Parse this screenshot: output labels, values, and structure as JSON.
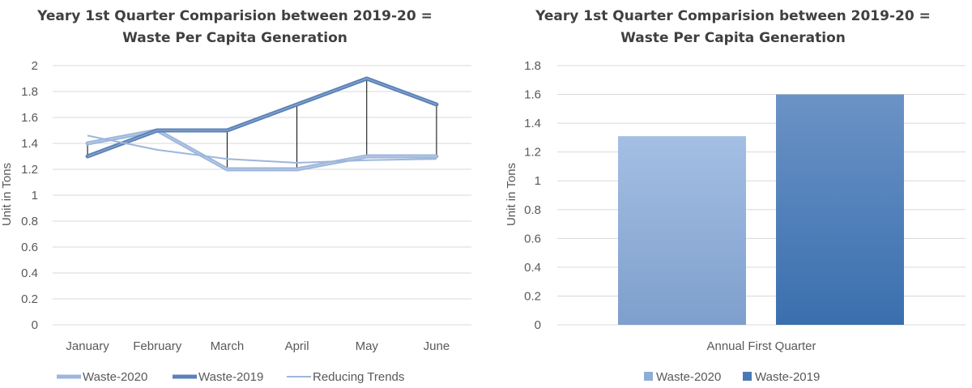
{
  "chart_data": [
    {
      "type": "line",
      "title_line1": "Yeary 1st Quarter Comparision between 2019-20 =",
      "title_line2": "Waste Per Capita Generation",
      "xlabel": "",
      "ylabel": "Unit in Tons",
      "categories": [
        "January",
        "February",
        "March",
        "April",
        "May",
        "June"
      ],
      "ylim": [
        0,
        2
      ],
      "yticks": [
        "0",
        "0.2",
        "0.4",
        "0.6",
        "0.8",
        "1",
        "1.2",
        "1.4",
        "1.6",
        "1.8",
        "2"
      ],
      "grid": true,
      "legend_position": "bottom",
      "drop_lines": true,
      "series": [
        {
          "name": "Waste-2020",
          "values": [
            1.4,
            1.5,
            1.2,
            1.2,
            1.3,
            1.3
          ],
          "color": "#9db6dc",
          "style": "thick"
        },
        {
          "name": "Waste-2019",
          "values": [
            1.3,
            1.5,
            1.5,
            1.7,
            1.9,
            1.7
          ],
          "color": "#5b82b8",
          "style": "thick"
        },
        {
          "name": "Reducing Trends",
          "values": [
            1.46,
            1.35,
            1.28,
            1.25,
            1.27,
            1.28
          ],
          "color": "#9db6dc",
          "style": "thin"
        }
      ]
    },
    {
      "type": "bar",
      "title_line1": "Yeary 1st Quarter Comparision between 2019-20 =",
      "title_line2": "Waste Per Capita Generation",
      "xlabel": "",
      "ylabel": "Unit in Tons",
      "categories": [
        "Annual First Quarter"
      ],
      "ylim": [
        0,
        1.8
      ],
      "yticks": [
        "0",
        "0.2",
        "0.4",
        "0.6",
        "0.8",
        "1",
        "1.2",
        "1.4",
        "1.6",
        "1.8"
      ],
      "grid": true,
      "legend_position": "bottom",
      "series": [
        {
          "name": "Waste-2020",
          "values": [
            1.31
          ],
          "color": "#8eadd9"
        },
        {
          "name": "Waste-2019",
          "values": [
            1.6
          ],
          "color": "#4a7ab5"
        }
      ]
    }
  ]
}
